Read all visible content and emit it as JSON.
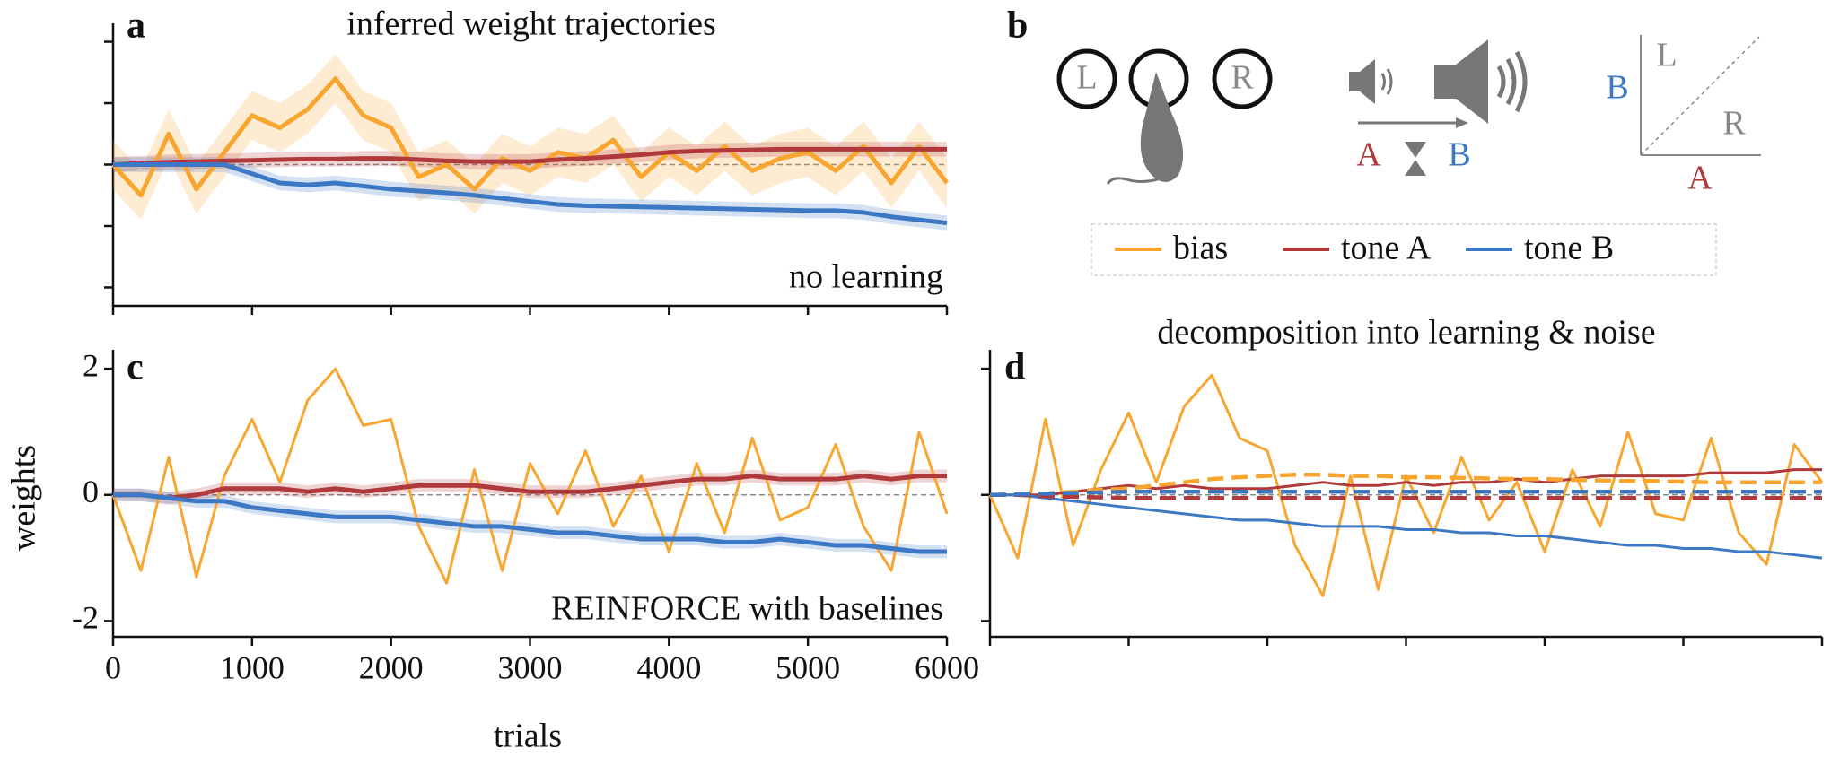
{
  "chart_data": [
    {
      "type": "line",
      "letter": "a",
      "title": "inferred weight trajectories",
      "annotation": "no learning",
      "x": [
        0,
        200,
        400,
        600,
        800,
        1000,
        1200,
        1400,
        1600,
        1800,
        2000,
        2200,
        2400,
        2600,
        2800,
        3000,
        3200,
        3400,
        3600,
        3800,
        4000,
        4200,
        4400,
        4600,
        4800,
        5000,
        5200,
        5400,
        5600,
        5800,
        6000
      ],
      "xlim": [
        0,
        6000
      ],
      "xticks": [
        0,
        1000,
        2000,
        3000,
        4000,
        5000,
        6000
      ],
      "ylim": [
        -2.3,
        2.3
      ],
      "yticks": [
        -2,
        -1,
        0,
        1,
        2
      ],
      "show_tick_labels": false,
      "hline": 0,
      "series": [
        {
          "name": "bias",
          "color": "#f8a630",
          "ci": 0.4,
          "values": [
            0,
            -0.5,
            0.5,
            -0.4,
            0.2,
            0.8,
            0.6,
            0.9,
            1.4,
            0.8,
            0.6,
            -0.2,
            0,
            -0.4,
            0.1,
            -0.1,
            0.2,
            0.1,
            0.4,
            -0.2,
            0.2,
            -0.1,
            0.3,
            -0.1,
            0.1,
            0.2,
            -0.1,
            0.3,
            -0.3,
            0.3,
            -0.3
          ]
        },
        {
          "name": "tone A",
          "color": "#b0393c",
          "ci": 0.12,
          "values": [
            0,
            0.02,
            0.04,
            0.05,
            0.06,
            0.07,
            0.08,
            0.09,
            0.09,
            0.1,
            0.1,
            0.08,
            0.06,
            0.05,
            0.05,
            0.05,
            0.08,
            0.1,
            0.13,
            0.16,
            0.2,
            0.22,
            0.23,
            0.24,
            0.25,
            0.25,
            0.25,
            0.25,
            0.25,
            0.25,
            0.25
          ]
        },
        {
          "name": "tone B",
          "color": "#3c78c3",
          "ci": 0.12,
          "values": [
            0,
            0,
            0,
            0,
            0,
            -0.15,
            -0.3,
            -0.33,
            -0.3,
            -0.35,
            -0.4,
            -0.43,
            -0.46,
            -0.5,
            -0.55,
            -0.6,
            -0.65,
            -0.67,
            -0.68,
            -0.69,
            -0.7,
            -0.71,
            -0.72,
            -0.73,
            -0.74,
            -0.75,
            -0.75,
            -0.78,
            -0.85,
            -0.9,
            -0.95
          ]
        }
      ]
    },
    {
      "type": "line",
      "letter": "c",
      "annotation": "REINFORCE with baselines",
      "ylabel": "weights",
      "xlabel": "trials",
      "x": [
        0,
        200,
        400,
        600,
        800,
        1000,
        1200,
        1400,
        1600,
        1800,
        2000,
        2200,
        2400,
        2600,
        2800,
        3000,
        3200,
        3400,
        3600,
        3800,
        4000,
        4200,
        4400,
        4600,
        4800,
        5000,
        5200,
        5400,
        5600,
        5800,
        6000
      ],
      "xlim": [
        0,
        6000
      ],
      "xticks": [
        0,
        1000,
        2000,
        3000,
        4000,
        5000,
        6000
      ],
      "ylim": [
        -2.25,
        2.3
      ],
      "yticks": [
        -2,
        0,
        2
      ],
      "show_tick_labels": true,
      "hline": 0,
      "series": [
        {
          "name": "bias",
          "color": "#f8a630",
          "values": [
            0,
            -1.2,
            0.6,
            -1.3,
            0.3,
            1.2,
            0.2,
            1.5,
            2.0,
            1.1,
            1.2,
            -0.5,
            -1.4,
            0.4,
            -1.2,
            0.5,
            -0.3,
            0.7,
            -0.5,
            0.3,
            -0.9,
            0.5,
            -0.6,
            0.9,
            -0.4,
            -0.2,
            0.8,
            -0.5,
            -1.2,
            1.0,
            -0.3
          ]
        },
        {
          "name": "tone A",
          "color": "#b0393c",
          "ci": 0.1,
          "values": [
            0,
            0,
            -0.05,
            0,
            0.1,
            0.1,
            0.1,
            0.05,
            0.1,
            0.05,
            0.1,
            0.15,
            0.15,
            0.15,
            0.1,
            0.05,
            0.05,
            0.05,
            0.1,
            0.15,
            0.2,
            0.25,
            0.25,
            0.3,
            0.25,
            0.25,
            0.25,
            0.3,
            0.25,
            0.3,
            0.3
          ]
        },
        {
          "name": "tone B",
          "color": "#3c78c3",
          "ci": 0.1,
          "values": [
            0,
            0,
            -0.05,
            -0.1,
            -0.1,
            -0.2,
            -0.25,
            -0.3,
            -0.35,
            -0.35,
            -0.35,
            -0.4,
            -0.45,
            -0.5,
            -0.5,
            -0.55,
            -0.6,
            -0.6,
            -0.65,
            -0.7,
            -0.7,
            -0.7,
            -0.75,
            -0.75,
            -0.7,
            -0.75,
            -0.8,
            -0.8,
            -0.85,
            -0.9,
            -0.9
          ]
        }
      ]
    },
    {
      "type": "line",
      "letter": "d",
      "title": "decomposition into learning & noise",
      "x": [
        0,
        200,
        400,
        600,
        800,
        1000,
        1200,
        1400,
        1600,
        1800,
        2000,
        2200,
        2400,
        2600,
        2800,
        3000,
        3200,
        3400,
        3600,
        3800,
        4000,
        4200,
        4400,
        4600,
        4800,
        5000,
        5200,
        5400,
        5600,
        5800,
        6000
      ],
      "xlim": [
        0,
        6000
      ],
      "xticks": [
        0,
        1000,
        2000,
        3000,
        4000,
        5000,
        6000
      ],
      "ylim": [
        -2.25,
        2.3
      ],
      "yticks": [
        -2,
        0,
        2
      ],
      "show_tick_labels": false,
      "hline": 0,
      "series": [
        {
          "name": "bias",
          "color": "#f8a630",
          "values": [
            0,
            -1.0,
            1.2,
            -0.8,
            0.4,
            1.3,
            0.2,
            1.4,
            1.9,
            0.9,
            0.7,
            -0.8,
            -1.6,
            0.3,
            -1.5,
            0.3,
            -0.6,
            0.6,
            -0.4,
            0.2,
            -0.9,
            0.4,
            -0.5,
            1.0,
            -0.3,
            -0.4,
            0.9,
            -0.6,
            -1.1,
            0.8,
            0.2
          ]
        },
        {
          "name": "tone A",
          "color": "#b0393c",
          "values": [
            0,
            0,
            0,
            0.05,
            0.1,
            0.15,
            0.1,
            0.15,
            0.1,
            0.1,
            0.1,
            0.15,
            0.2,
            0.15,
            0.15,
            0.2,
            0.15,
            0.2,
            0.2,
            0.25,
            0.2,
            0.25,
            0.3,
            0.3,
            0.3,
            0.3,
            0.35,
            0.35,
            0.35,
            0.4,
            0.4
          ]
        },
        {
          "name": "tone B",
          "color": "#3c78c3",
          "values": [
            0,
            0,
            -0.05,
            -0.1,
            -0.15,
            -0.2,
            -0.25,
            -0.3,
            -0.35,
            -0.4,
            -0.4,
            -0.45,
            -0.5,
            -0.5,
            -0.5,
            -0.55,
            -0.55,
            -0.6,
            -0.6,
            -0.65,
            -0.65,
            -0.7,
            -0.75,
            -0.8,
            -0.8,
            -0.85,
            -0.85,
            -0.9,
            -0.9,
            -0.95,
            -1.0
          ]
        },
        {
          "color": "#f8a630",
          "style": "dashed",
          "values": [
            0,
            0,
            0.02,
            0.05,
            0.08,
            0.1,
            0.15,
            0.2,
            0.25,
            0.28,
            0.3,
            0.32,
            0.32,
            0.3,
            0.3,
            0.28,
            0.28,
            0.27,
            0.26,
            0.25,
            0.25,
            0.24,
            0.23,
            0.22,
            0.22,
            0.21,
            0.2,
            0.2,
            0.2,
            0.2,
            0.2
          ]
        },
        {
          "color": "#b0393c",
          "style": "dashed",
          "values": [
            0,
            0,
            -0.02,
            -0.03,
            -0.04,
            -0.05,
            -0.05,
            -0.05,
            -0.05,
            -0.05,
            -0.05,
            -0.05,
            -0.05,
            -0.05,
            -0.05,
            -0.05,
            -0.05,
            -0.05,
            -0.05,
            -0.05,
            -0.05,
            -0.05,
            -0.05,
            -0.05,
            -0.05,
            -0.05,
            -0.05,
            -0.05,
            -0.05,
            -0.05,
            -0.05
          ]
        },
        {
          "color": "#3c78c3",
          "style": "dashed",
          "values": [
            0,
            0.01,
            0.02,
            0.03,
            0.04,
            0.05,
            0.05,
            0.05,
            0.05,
            0.05,
            0.05,
            0.05,
            0.05,
            0.05,
            0.05,
            0.05,
            0.05,
            0.05,
            0.05,
            0.05,
            0.05,
            0.05,
            0.05,
            0.05,
            0.05,
            0.05,
            0.05,
            0.05,
            0.05,
            0.05,
            0.05
          ]
        }
      ]
    }
  ],
  "diagram": {
    "letter": "b",
    "ports": [
      "L",
      "R"
    ],
    "tones": [
      "A",
      "B"
    ],
    "axes_labels": {
      "y": "B",
      "top": "L",
      "bottom": "R",
      "x": "A"
    }
  }
}
